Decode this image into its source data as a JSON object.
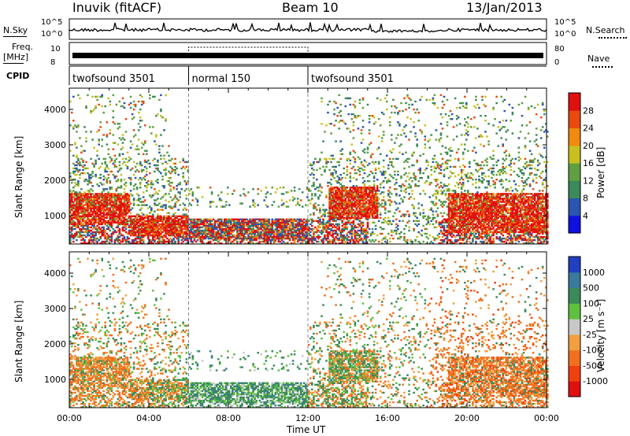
{
  "header": {
    "station": "Inuvik (fitACF)",
    "beam": "Beam 10",
    "date": "13/Jan/2013"
  },
  "top_strips": {
    "nsky_label": "N.Sky",
    "nsky_ticks": [
      "10^5",
      "10^0"
    ],
    "nsearch_label": "N.Search",
    "nsearch_ticks": [
      "10^5",
      "10^0"
    ],
    "freq_label_1": "Freq.",
    "freq_label_2": "[MHz]",
    "freq_ticks": [
      "10",
      "8"
    ],
    "nave_label": "Nave",
    "nave_ticks": [
      "80",
      "0"
    ],
    "cpid_label": "CPID",
    "cpid_segments": [
      {
        "label": "twofsound 3501",
        "start_hour": 0,
        "end_hour": 6
      },
      {
        "label": "normal 150",
        "start_hour": 6,
        "end_hour": 12
      },
      {
        "label": "twofsound 3501",
        "start_hour": 12,
        "end_hour": 24
      }
    ]
  },
  "chart_data": [
    {
      "type": "heatmap",
      "quantity": "Power",
      "ylabel": "Slant Range [km]",
      "yticks": [
        "1000",
        "2000",
        "3000",
        "4000"
      ],
      "ylim": [
        200,
        4600
      ],
      "xlim": [
        0,
        24
      ],
      "colorbar_label": "Power [dB]",
      "colorbar_ticks": [
        "4",
        "8",
        "12",
        "16",
        "20",
        "24",
        "28"
      ],
      "colorbar_colors": [
        "#1010e0",
        "#2a55b0",
        "#3a8a5a",
        "#60a040",
        "#c8c020",
        "#f08a10",
        "#e84a10",
        "#e01010"
      ],
      "echo_bands": [
        {
          "start_hour": 0,
          "end_hour": 3,
          "range_low": 700,
          "range_high": 1600,
          "level": "strong"
        },
        {
          "start_hour": 3,
          "end_hour": 6,
          "range_low": 400,
          "range_high": 1000,
          "level": "strong"
        },
        {
          "start_hour": 6,
          "end_hour": 12,
          "range_low": 300,
          "range_high": 900,
          "level": "mixed"
        },
        {
          "start_hour": 13,
          "end_hour": 15.5,
          "range_low": 900,
          "range_high": 1800,
          "level": "strong"
        },
        {
          "start_hour": 19,
          "end_hour": 24,
          "range_low": 500,
          "range_high": 1600,
          "level": "strong"
        }
      ]
    },
    {
      "type": "heatmap",
      "quantity": "Velocity",
      "ylabel": "Slant Range [km]",
      "xlabel": "Time UT",
      "xticks": [
        "00:00",
        "04:00",
        "08:00",
        "12:00",
        "16:00",
        "20:00",
        "00:00"
      ],
      "yticks": [
        "1000",
        "2000",
        "3000",
        "4000"
      ],
      "ylim": [
        200,
        4600
      ],
      "xlim": [
        0,
        24
      ],
      "colorbar_label": "Velocity [m s⁻¹]",
      "colorbar_ticks": [
        "1000",
        "500",
        "100",
        "25",
        "-25",
        "-100",
        "-500",
        "-1000"
      ],
      "colorbar_colors": [
        "#2040c0",
        "#3a7a9a",
        "#3a8a5a",
        "#60c040",
        "#c8c8c8",
        "#f0a040",
        "#f07020",
        "#f04010",
        "#e01010"
      ]
    }
  ]
}
